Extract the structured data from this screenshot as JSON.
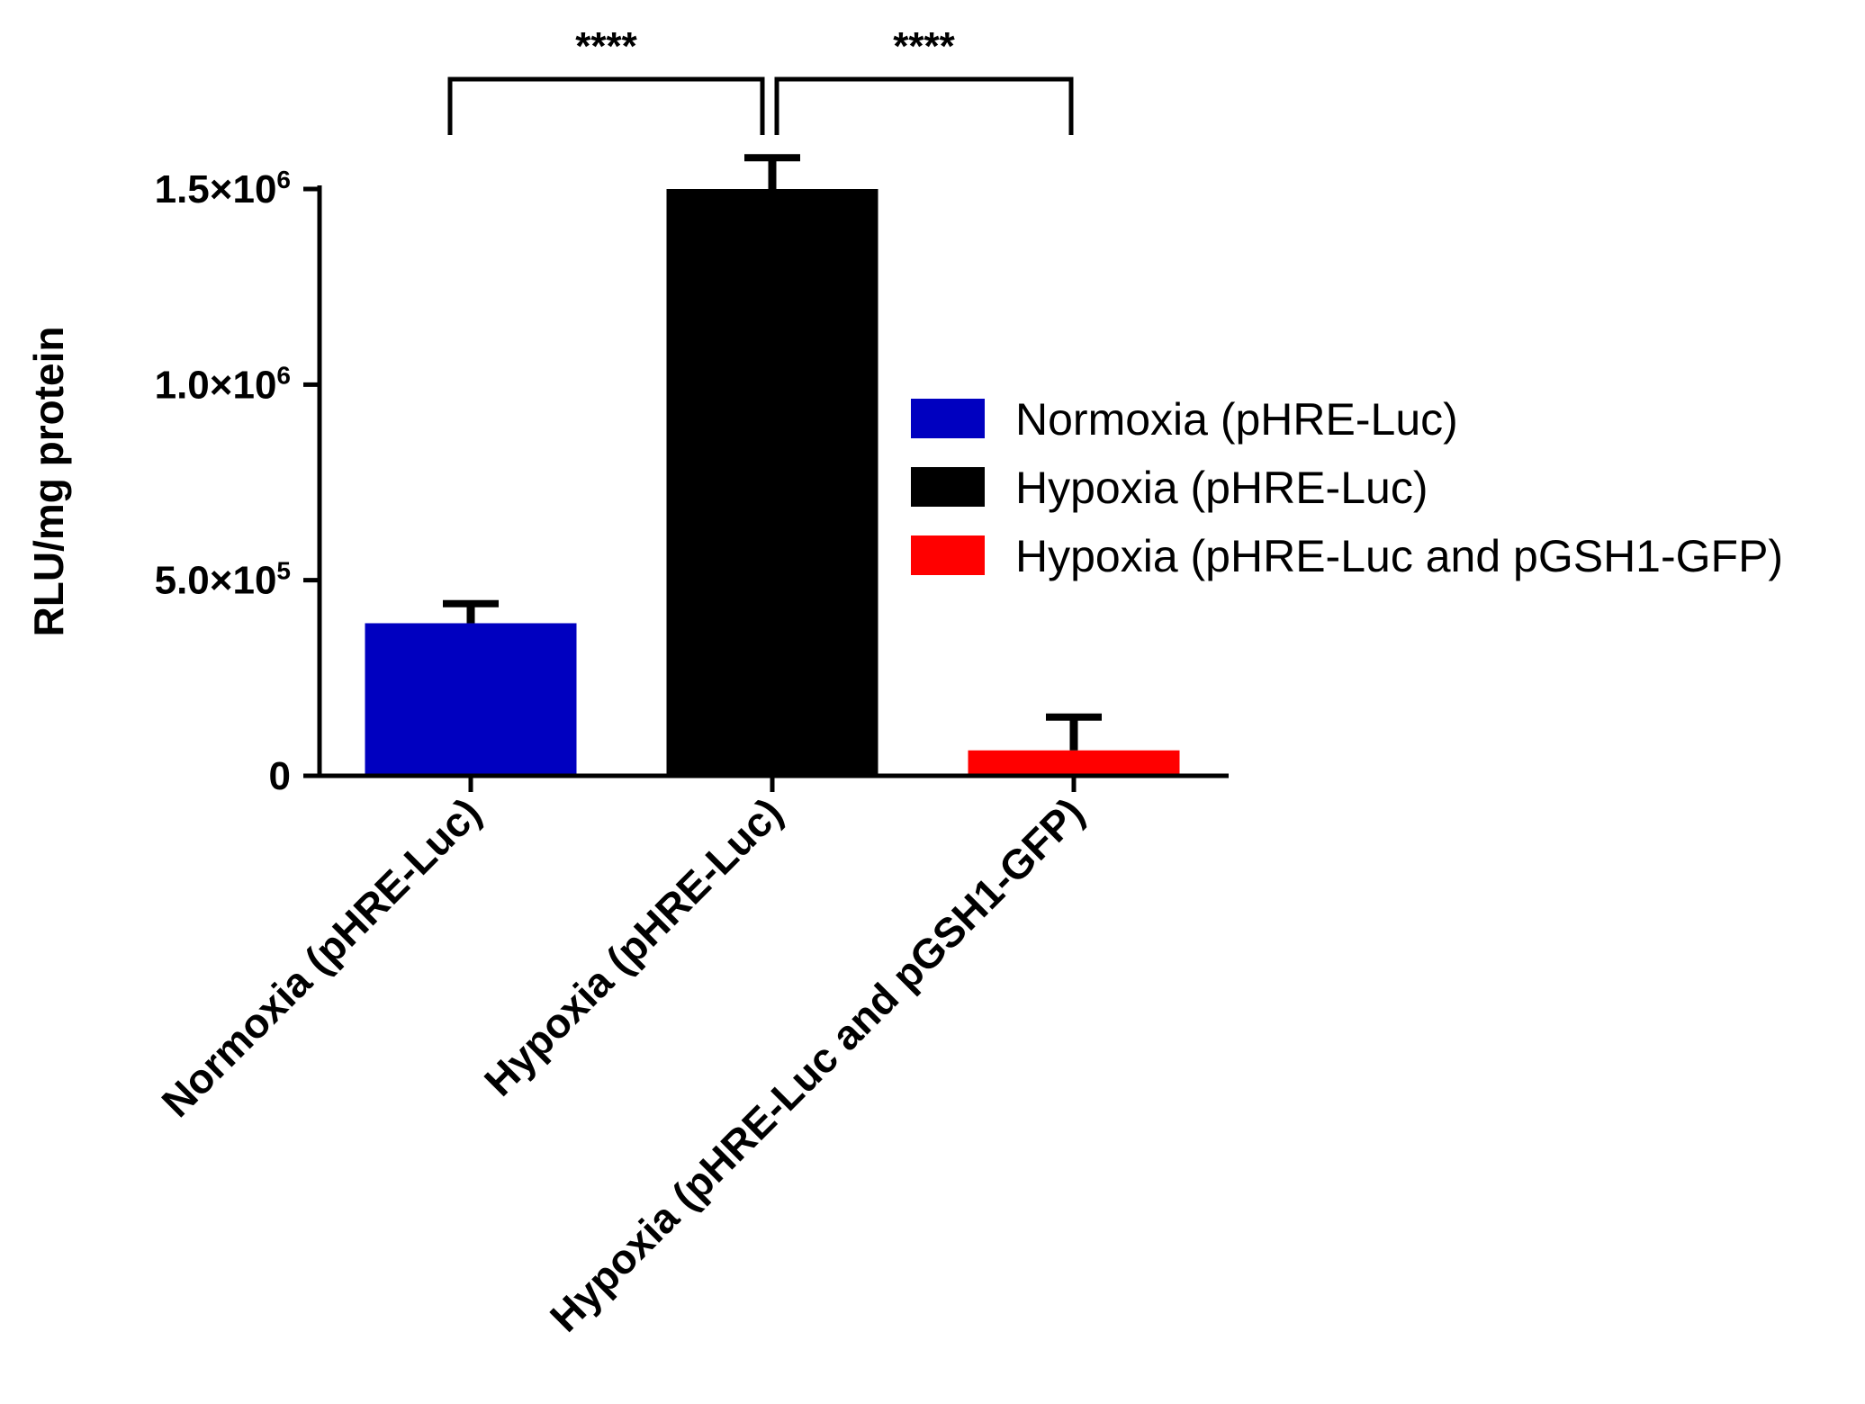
{
  "chart_data": {
    "type": "bar",
    "categories": [
      "Normoxia (pHRE-Luc)",
      "Hypoxia (pHRE-Luc)",
      "Hypoxia (pHRE-Luc and pGSH1-GFP)"
    ],
    "values": [
      390000,
      1500000,
      65000
    ],
    "error_upper": [
      440000,
      1580000,
      150000
    ],
    "colors": [
      "#0000c0",
      "#000000",
      "#ff0000"
    ],
    "ylabel": "RLU/mg protein",
    "xlabel": "",
    "ylim": [
      0,
      1500000
    ],
    "yticks": [
      {
        "value": 0,
        "mantissa": "0",
        "exponent": ""
      },
      {
        "value": 500000,
        "mantissa": "5.0×10",
        "exponent": "5"
      },
      {
        "value": 1000000,
        "mantissa": "1.0×10",
        "exponent": "6"
      },
      {
        "value": 1500000,
        "mantissa": "1.5×10",
        "exponent": "6"
      }
    ],
    "legend": {
      "placement": "right",
      "entries": [
        "Normoxia (pHRE-Luc)",
        "Hypoxia (pHRE-Luc)",
        "Hypoxia (pHRE-Luc and pGSH1-GFP)"
      ]
    },
    "significance": [
      {
        "from": 0,
        "to": 1,
        "label": "****"
      },
      {
        "from": 1,
        "to": 2,
        "label": "****"
      }
    ],
    "grid": false
  }
}
